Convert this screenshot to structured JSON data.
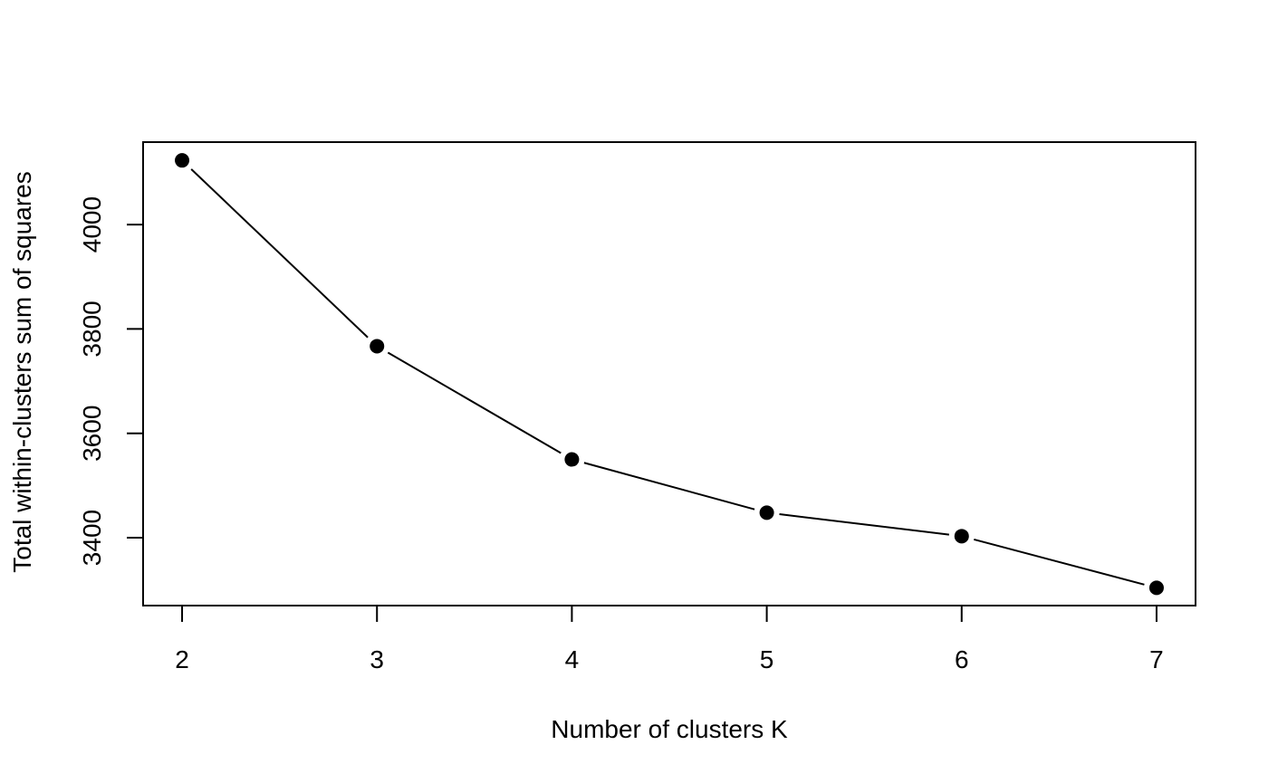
{
  "chart_data": {
    "type": "line",
    "title": "",
    "xlabel": "Number of clusters K",
    "ylabel": "Total within-clusters sum of squares",
    "x": [
      2,
      3,
      4,
      5,
      6,
      7
    ],
    "series": [
      {
        "values": [
          4123,
          3767,
          3550,
          3448,
          3403,
          3304
        ]
      }
    ],
    "xticks": [
      2,
      3,
      4,
      5,
      6,
      7
    ],
    "yticks": [
      3400,
      3600,
      3800,
      4000
    ],
    "xlim": [
      1.8,
      7.2
    ],
    "ylim": [
      3270,
      4158
    ],
    "marker": "filled-circle",
    "grid": false,
    "legend": "none",
    "colors": {
      "line": "#000000",
      "marker": "#000000",
      "frame": "#000000"
    }
  }
}
